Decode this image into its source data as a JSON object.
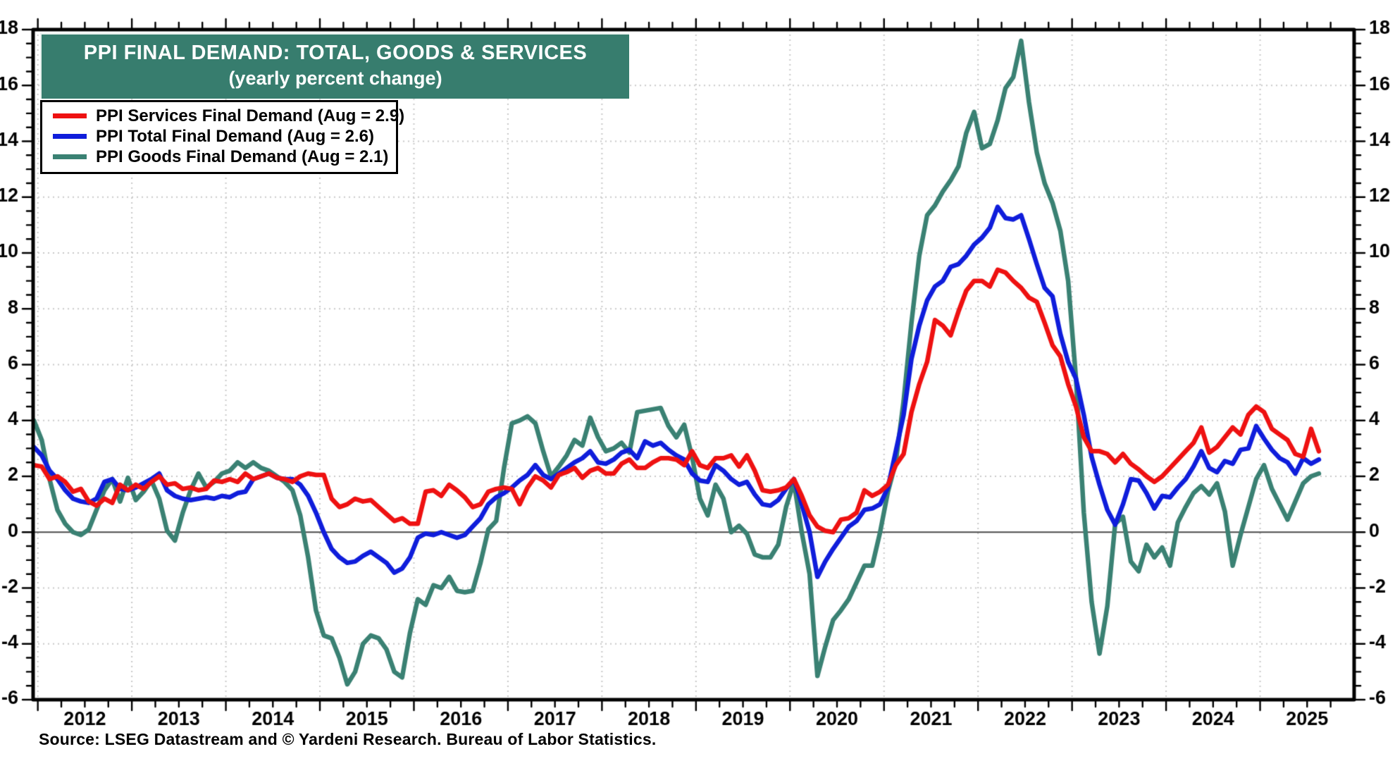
{
  "styles": {
    "title_bg": "#377d6e",
    "title_fg": "#ffffff",
    "frame_color": "#000000",
    "grid_color": "#c9c9c9",
    "zero_line_color": "#4a4a4a",
    "tick_label_color": "#000000"
  },
  "source_note": "Source: LSEG Datastream and © Yardeni Research. Bureau of Labor Statistics.",
  "chart_data": {
    "type": "line",
    "title": "PPI FINAL DEMAND: TOTAL, GOODS & SERVICES",
    "subtitle": "(yearly percent change)",
    "xlabel": "",
    "ylabel": "",
    "ylim": [
      -6,
      18
    ],
    "y_tick_step": 2,
    "y_minor_step": 0.5,
    "x_minor_step_years": 0.25,
    "grid": "dotted",
    "legend_position": "top-left",
    "frequency": "monthly",
    "x_start": "2011-12",
    "x_end": "2025-08",
    "x_year_labels": [
      "2012",
      "2013",
      "2014",
      "2015",
      "2016",
      "2017",
      "2018",
      "2019",
      "2020",
      "2021",
      "2022",
      "2023",
      "2024",
      "2025"
    ],
    "y_tick_labels": [
      "-6",
      "-4",
      "-2",
      "0",
      "2",
      "4",
      "6",
      "8",
      "10",
      "12",
      "14",
      "16",
      "18"
    ],
    "series": [
      {
        "name": "PPI Services Final Demand (Aug = 2.9)",
        "color": "#ee1111",
        "values": [
          2.4,
          2.35,
          1.9,
          2.0,
          1.8,
          1.45,
          1.55,
          1.1,
          0.95,
          1.2,
          1.05,
          1.7,
          1.5,
          1.7,
          1.55,
          1.8,
          2.0,
          1.7,
          1.75,
          1.55,
          1.6,
          1.5,
          1.55,
          1.85,
          1.8,
          1.9,
          1.8,
          2.1,
          1.9,
          2.0,
          2.1,
          1.95,
          1.9,
          1.8,
          2.0,
          2.1,
          2.05,
          2.05,
          1.2,
          0.9,
          1.0,
          1.2,
          1.1,
          1.15,
          0.9,
          0.65,
          0.4,
          0.5,
          0.3,
          0.3,
          1.45,
          1.5,
          1.3,
          1.7,
          1.5,
          1.25,
          0.9,
          1.0,
          1.45,
          1.55,
          1.6,
          1.55,
          1.0,
          1.6,
          2.0,
          1.85,
          1.6,
          2.05,
          2.15,
          2.3,
          1.95,
          2.2,
          2.3,
          2.1,
          2.1,
          2.45,
          2.6,
          2.3,
          2.3,
          2.5,
          2.65,
          2.65,
          2.6,
          2.4,
          2.9,
          2.4,
          2.3,
          2.65,
          2.65,
          2.75,
          2.35,
          2.75,
          2.2,
          1.5,
          1.45,
          1.5,
          1.6,
          1.9,
          1.3,
          0.6,
          0.2,
          0.05,
          0.0,
          0.45,
          0.5,
          0.7,
          1.5,
          1.3,
          1.45,
          1.7,
          2.4,
          2.8,
          4.3,
          5.3,
          6.1,
          7.6,
          7.4,
          7.05,
          7.9,
          8.65,
          9.0,
          9.0,
          8.8,
          9.4,
          9.3,
          9.0,
          8.75,
          8.4,
          8.25,
          7.5,
          6.7,
          6.3,
          5.3,
          4.5,
          3.4,
          2.9,
          2.9,
          2.8,
          2.5,
          2.8,
          2.45,
          2.25,
          2.0,
          1.8,
          2.0,
          2.3,
          2.6,
          2.9,
          3.2,
          3.75,
          2.85,
          3.05,
          3.4,
          3.75,
          3.5,
          4.2,
          4.5,
          4.3,
          3.7,
          3.5,
          3.3,
          2.8,
          2.7,
          3.7,
          2.9
        ]
      },
      {
        "name": "PPI Total Final Demand (Aug = 2.6)",
        "color": "#0f1ddb",
        "values": [
          3.05,
          2.75,
          2.2,
          1.9,
          1.5,
          1.2,
          1.1,
          1.05,
          1.2,
          1.8,
          1.9,
          1.55,
          1.5,
          1.6,
          1.75,
          1.9,
          2.1,
          1.5,
          1.3,
          1.2,
          1.15,
          1.2,
          1.25,
          1.2,
          1.3,
          1.25,
          1.4,
          1.45,
          1.9,
          2.0,
          2.1,
          1.95,
          1.9,
          1.9,
          1.7,
          1.3,
          0.7,
          0.0,
          -0.6,
          -0.9,
          -1.1,
          -1.05,
          -0.85,
          -0.7,
          -0.9,
          -1.1,
          -1.45,
          -1.3,
          -0.9,
          -0.2,
          -0.05,
          -0.1,
          0.0,
          -0.1,
          -0.2,
          -0.1,
          0.2,
          0.5,
          1.0,
          1.25,
          1.4,
          1.6,
          1.85,
          2.05,
          2.4,
          2.05,
          1.9,
          2.1,
          2.3,
          2.5,
          2.65,
          2.9,
          2.5,
          2.45,
          2.6,
          2.85,
          2.95,
          2.65,
          3.25,
          3.1,
          3.2,
          2.95,
          2.75,
          2.6,
          2.1,
          1.85,
          1.8,
          2.4,
          2.2,
          1.9,
          1.7,
          1.8,
          1.35,
          1.0,
          0.95,
          1.15,
          1.55,
          1.9,
          1.0,
          0.0,
          -1.6,
          -1.05,
          -0.6,
          -0.2,
          0.2,
          0.4,
          0.8,
          0.85,
          1.0,
          1.6,
          2.9,
          4.2,
          6.2,
          7.4,
          8.3,
          8.8,
          9.0,
          9.5,
          9.6,
          9.9,
          10.3,
          10.55,
          10.9,
          11.65,
          11.25,
          11.2,
          11.35,
          10.5,
          9.6,
          8.75,
          8.45,
          7.1,
          6.1,
          5.5,
          4.2,
          2.7,
          1.7,
          0.8,
          0.27,
          1.0,
          1.9,
          1.85,
          1.4,
          0.85,
          1.3,
          1.25,
          1.6,
          1.9,
          2.35,
          2.9,
          2.3,
          2.15,
          2.55,
          2.45,
          2.95,
          3.0,
          3.8,
          3.35,
          2.95,
          2.65,
          2.5,
          2.1,
          2.65,
          2.45,
          2.6
        ]
      },
      {
        "name": "PPI Goods Final Demand (Aug = 2.1)",
        "color": "#3a8173",
        "values": [
          4.0,
          3.3,
          1.9,
          0.8,
          0.3,
          0.0,
          -0.1,
          0.1,
          0.8,
          1.5,
          1.9,
          1.1,
          1.95,
          1.15,
          1.45,
          1.85,
          1.2,
          0.05,
          -0.3,
          0.7,
          1.5,
          2.1,
          1.6,
          1.8,
          2.1,
          2.2,
          2.5,
          2.3,
          2.5,
          2.3,
          2.2,
          2.0,
          1.8,
          1.5,
          0.6,
          -0.9,
          -2.8,
          -3.7,
          -3.8,
          -4.5,
          -5.45,
          -5.0,
          -4.0,
          -3.7,
          -3.8,
          -4.2,
          -5.0,
          -5.2,
          -3.6,
          -2.4,
          -2.6,
          -1.9,
          -2.0,
          -1.6,
          -2.1,
          -2.15,
          -2.1,
          -1.1,
          0.1,
          0.4,
          2.3,
          3.9,
          4.0,
          4.15,
          3.9,
          2.9,
          2.0,
          2.35,
          2.75,
          3.3,
          3.1,
          4.1,
          3.4,
          2.9,
          3.0,
          3.2,
          2.85,
          4.3,
          4.35,
          4.4,
          4.45,
          3.8,
          3.4,
          3.85,
          2.7,
          1.2,
          0.6,
          1.7,
          1.2,
          0.0,
          0.23,
          -0.06,
          -0.8,
          -0.9,
          -0.9,
          -0.45,
          0.9,
          1.8,
          0.0,
          -1.5,
          -5.15,
          -4.1,
          -3.15,
          -2.8,
          -2.4,
          -1.8,
          -1.2,
          -1.2,
          0.0,
          1.45,
          2.5,
          4.7,
          7.5,
          9.9,
          11.35,
          11.7,
          12.2,
          12.6,
          13.1,
          14.3,
          15.05,
          13.75,
          13.9,
          14.75,
          15.9,
          16.3,
          17.6,
          15.4,
          13.6,
          12.5,
          11.8,
          10.8,
          9.0,
          5.5,
          0.7,
          -2.5,
          -4.35,
          -2.65,
          0.3,
          0.55,
          -1.05,
          -1.4,
          -0.45,
          -0.9,
          -0.55,
          -1.2,
          0.35,
          0.9,
          1.4,
          1.65,
          1.35,
          1.75,
          0.75,
          -1.2,
          -0.1,
          0.9,
          1.9,
          2.4,
          1.55,
          1.0,
          0.45,
          1.1,
          1.75,
          2.0,
          2.1
        ]
      }
    ]
  }
}
